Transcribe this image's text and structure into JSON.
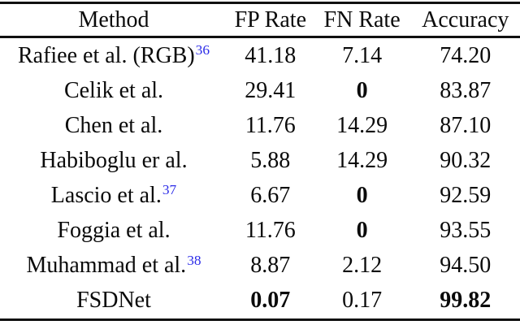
{
  "colors": {
    "citation": "#2B2BE8",
    "text": "#0a0a0a",
    "rule": "#101010"
  },
  "table": {
    "columns": [
      "Method",
      "FP Rate",
      "FN Rate",
      "Accuracy"
    ],
    "rows": [
      {
        "method": "Rafiee et al. (RGB)",
        "sup": "36",
        "fp": "41.18",
        "fn": "7.14",
        "acc": "74.20"
      },
      {
        "method": "Celik et al.",
        "sup": "",
        "fp": "29.41",
        "fn": "0",
        "acc": "83.87"
      },
      {
        "method": "Chen et al.",
        "sup": "",
        "fp": "11.76",
        "fn": "14.29",
        "acc": "87.10"
      },
      {
        "method": "Habiboglu er al.",
        "sup": "",
        "fp": "5.88",
        "fn": "14.29",
        "acc": "90.32"
      },
      {
        "method": "Lascio et al.",
        "sup": "37",
        "fp": "6.67",
        "fn": "0",
        "acc": "92.59"
      },
      {
        "method": "Foggia et al.",
        "sup": "",
        "fp": "11.76",
        "fn": "0",
        "acc": "93.55"
      },
      {
        "method": "Muhammad et al.",
        "sup": "38",
        "fp": "8.87",
        "fn": "2.12",
        "acc": "94.50"
      },
      {
        "method": "FSDNet",
        "sup": "",
        "fp": "0.07",
        "fn": "0.17",
        "acc": "99.82"
      }
    ]
  }
}
